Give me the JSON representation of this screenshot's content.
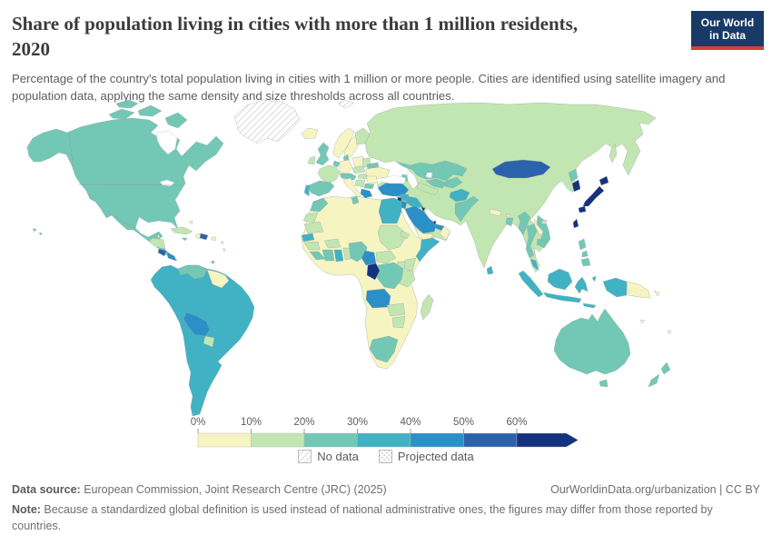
{
  "header": {
    "title": "Share of population living in cities with more than 1 million residents,\n2020",
    "subtitle": "Percentage of the country's total population living in cities with 1 million or more people. Cities are identified using satellite imagery and population data, applying the same density and size thresholds across all countries.",
    "logo": {
      "line1": "Our World",
      "line2": "in Data"
    }
  },
  "theme": {
    "logo_bg": "#183a66",
    "logo_stripe": "#d63f36",
    "title_color": "#3b3b3b",
    "subtitle_color": "#5d5d5d"
  },
  "footer": {
    "data_source_label": "Data source:",
    "data_source_text": " European Commission, Joint Research Centre (JRC) (2025)",
    "rights": "OurWorldinData.org/urbanization | CC BY",
    "note_label": "Note:",
    "note_text": " Because a standardized global definition is used instead of national administrative ones, the figures may differ from those reported by countries."
  },
  "chart_data": {
    "type": "choropleth_map",
    "title": "Share of population living in cities with more than 1 million residents",
    "year": "2020",
    "unit": "% of total population",
    "legend": {
      "tick_labels": [
        "0%",
        "10%",
        "20%",
        "30%",
        "40%",
        "50%",
        "60%"
      ],
      "bins": [
        {
          "range": "0-10%",
          "color": "#f6f5c2"
        },
        {
          "range": "10-20%",
          "color": "#c2e6b2"
        },
        {
          "range": "20-30%",
          "color": "#72c8b4"
        },
        {
          "range": "30-40%",
          "color": "#41b2c3"
        },
        {
          "range": "40-50%",
          "color": "#2b90c7"
        },
        {
          "range": "50-60%",
          "color": "#2a63ac"
        },
        {
          "range": "60%+",
          "color": "#14327d"
        }
      ],
      "no_data_label": "No data",
      "projected_data_label": "Projected data"
    },
    "regions": [
      {
        "id": "north-america",
        "label": "Canada, United States & Mexico",
        "value": "20-30%",
        "bin": 2
      },
      {
        "id": "greenland",
        "label": "Greenland",
        "value": "No data",
        "bin": "no_data"
      },
      {
        "id": "svalbard",
        "label": "Svalbard",
        "value": "No data",
        "bin": "no_data"
      },
      {
        "id": "iceland",
        "label": "Iceland",
        "value": "0-10%",
        "bin": 0
      },
      {
        "id": "hawaii",
        "label": "Hawaii (US)",
        "value": "20-30%",
        "bin": 2
      },
      {
        "id": "belize",
        "label": "Belize",
        "value": "0-10%",
        "bin": 0
      },
      {
        "id": "honduras-nicaragua",
        "label": "Honduras & Nicaragua",
        "value": "10-20%",
        "bin": 1
      },
      {
        "id": "costa-rica",
        "label": "Costa Rica",
        "value": "50-60%",
        "bin": 5
      },
      {
        "id": "panama",
        "label": "Panama",
        "value": "40-50%",
        "bin": 4
      },
      {
        "id": "cuba",
        "label": "Cuba",
        "value": "10-20%",
        "bin": 1
      },
      {
        "id": "jamaica",
        "label": "Jamaica",
        "value": "20-30%",
        "bin": 2
      },
      {
        "id": "haiti",
        "label": "Haiti",
        "value": "0-10%",
        "bin": 0
      },
      {
        "id": "dominican-republic",
        "label": "Dominican Republic",
        "value": "50-60%",
        "bin": 5
      },
      {
        "id": "puerto-rico",
        "label": "Puerto Rico",
        "value": "0-10%",
        "bin": 0
      },
      {
        "id": "bahamas",
        "label": "Bahamas",
        "value": "0-10%",
        "bin": 0
      },
      {
        "id": "lesser-antilles",
        "label": "Lesser Antilles",
        "value": "0-10%",
        "bin": 0
      },
      {
        "id": "trinidad",
        "label": "Trinidad and Tobago",
        "value": "20-30%",
        "bin": 2
      },
      {
        "id": "south-america",
        "label": "Brazil, Argentina, Chile, Peru, Colombia, Ecuador & Uruguay",
        "value": "30-40%",
        "bin": 3
      },
      {
        "id": "venezuela",
        "label": "Venezuela",
        "value": "20-30%",
        "bin": 2
      },
      {
        "id": "guyanas",
        "label": "Guyana, Suriname & French Guiana",
        "value": "0-10%",
        "bin": 0
      },
      {
        "id": "bolivia",
        "label": "Bolivia",
        "value": "40-50%",
        "bin": 4
      },
      {
        "id": "paraguay",
        "label": "Paraguay",
        "value": "10-20%",
        "bin": 1
      },
      {
        "id": "norway",
        "label": "Norway",
        "value": "0-10%",
        "bin": 0
      },
      {
        "id": "sweden",
        "label": "Sweden",
        "value": "0-10%",
        "bin": 0
      },
      {
        "id": "finland",
        "label": "Finland",
        "value": "10-20%",
        "bin": 1
      },
      {
        "id": "uk",
        "label": "United Kingdom",
        "value": "20-30%",
        "bin": 2
      },
      {
        "id": "ireland",
        "label": "Ireland",
        "value": "10-20%",
        "bin": 1
      },
      {
        "id": "denmark",
        "label": "Denmark",
        "value": "20-30%",
        "bin": 2
      },
      {
        "id": "germany",
        "label": "Germany",
        "value": "0-10%",
        "bin": 0
      },
      {
        "id": "benelux",
        "label": "Netherlands & Belgium",
        "value": "20-30%",
        "bin": 2
      },
      {
        "id": "france",
        "label": "France",
        "value": "10-20%",
        "bin": 1
      },
      {
        "id": "spain",
        "label": "Spain",
        "value": "20-30%",
        "bin": 2
      },
      {
        "id": "portugal",
        "label": "Portugal",
        "value": "30-40%",
        "bin": 3
      },
      {
        "id": "switzerland-austria",
        "label": "Switzerland & Austria",
        "value": "20-30%",
        "bin": 2
      },
      {
        "id": "italy",
        "label": "Italy",
        "value": "0-10%",
        "bin": 0
      },
      {
        "id": "poland",
        "label": "Poland",
        "value": "0-10%",
        "bin": 0
      },
      {
        "id": "czech-slovakia",
        "label": "Czechia & Slovakia",
        "value": "10-20%",
        "bin": 1
      },
      {
        "id": "hungary",
        "label": "Hungary",
        "value": "10-20%",
        "bin": 1
      },
      {
        "id": "baltics",
        "label": "Baltic states",
        "value": "10-20%",
        "bin": 1
      },
      {
        "id": "belarus",
        "label": "Belarus",
        "value": "20-30%",
        "bin": 2
      },
      {
        "id": "ukraine",
        "label": "Ukraine",
        "value": "0-10%",
        "bin": 0
      },
      {
        "id": "romania",
        "label": "Romania",
        "value": "0-10%",
        "bin": 0
      },
      {
        "id": "balkans",
        "label": "Western Balkans",
        "value": "10-20%",
        "bin": 1
      },
      {
        "id": "bulgaria",
        "label": "Bulgaria",
        "value": "20-30%",
        "bin": 2
      },
      {
        "id": "greece",
        "label": "Greece",
        "value": "40-50%",
        "bin": 4
      },
      {
        "id": "asia-mainland",
        "label": "Russia, China, India & Iran",
        "value": "10-20%",
        "bin": 1
      },
      {
        "id": "sakhalin",
        "label": "Sakhalin (Russia)",
        "value": "10-20%",
        "bin": 1
      },
      {
        "id": "kazakhstan",
        "label": "Kazakhstan",
        "value": "20-30%",
        "bin": 2
      },
      {
        "id": "uzbekistan",
        "label": "Uzbekistan",
        "value": "20-30%",
        "bin": 2
      },
      {
        "id": "turkmenistan",
        "label": "Turkmenistan",
        "value": "10-20%",
        "bin": 1
      },
      {
        "id": "kyrgyz-tajik",
        "label": "Kyrgyzstan & Tajikistan",
        "value": "20-30%",
        "bin": 2
      },
      {
        "id": "caucasus",
        "label": "Georgia & Azerbaijan",
        "value": "20-30%",
        "bin": 2
      },
      {
        "id": "turkey",
        "label": "Turkey",
        "value": "40-50%",
        "bin": 4
      },
      {
        "id": "syria",
        "label": "Syria",
        "value": "30-40%",
        "bin": 3
      },
      {
        "id": "iraq",
        "label": "Iraq",
        "value": "30-40%",
        "bin": 3
      },
      {
        "id": "israel-lebanon",
        "label": "Israel & Lebanon",
        "value": "60%+",
        "bin": 6
      },
      {
        "id": "jordan",
        "label": "Jordan",
        "value": "40-50%",
        "bin": 4
      },
      {
        "id": "saudi-arabia",
        "label": "Saudi Arabia",
        "value": "40-50%",
        "bin": 4
      },
      {
        "id": "kuwait",
        "label": "Kuwait",
        "value": "60%+",
        "bin": 6
      },
      {
        "id": "qatar",
        "label": "Qatar",
        "value": "60%+",
        "bin": 6
      },
      {
        "id": "uae",
        "label": "United Arab Emirates",
        "value": "40-50%",
        "bin": 4
      },
      {
        "id": "oman",
        "label": "Oman",
        "value": "0-10%",
        "bin": 0
      },
      {
        "id": "yemen",
        "label": "Yemen",
        "value": "0-10%",
        "bin": 0
      },
      {
        "id": "afghanistan",
        "label": "Afghanistan",
        "value": "30-40%",
        "bin": 3
      },
      {
        "id": "pakistan",
        "label": "Pakistan",
        "value": "20-30%",
        "bin": 2
      },
      {
        "id": "nepal",
        "label": "Nepal",
        "value": "0-10%",
        "bin": 0
      },
      {
        "id": "bhutan",
        "label": "Bhutan",
        "value": "0-10%",
        "bin": 0
      },
      {
        "id": "bangladesh",
        "label": "Bangladesh",
        "value": "20-30%",
        "bin": 2
      },
      {
        "id": "sri-lanka",
        "label": "Sri Lanka",
        "value": "30-40%",
        "bin": 3
      },
      {
        "id": "mongolia",
        "label": "Mongolia",
        "value": "50-60%",
        "bin": 5
      },
      {
        "id": "myanmar",
        "label": "Myanmar",
        "value": "20-30%",
        "bin": 2
      },
      {
        "id": "thailand",
        "label": "Thailand",
        "value": "20-30%",
        "bin": 2
      },
      {
        "id": "laos",
        "label": "Laos",
        "value": "0-10%",
        "bin": 0
      },
      {
        "id": "cambodia",
        "label": "Cambodia",
        "value": "20-30%",
        "bin": 2
      },
      {
        "id": "vietnam",
        "label": "Vietnam",
        "value": "20-30%",
        "bin": 2
      },
      {
        "id": "malaysia",
        "label": "Malaysia",
        "value": "30-40%",
        "bin": 3
      },
      {
        "id": "indonesia",
        "label": "Indonesia",
        "value": "30-40%",
        "bin": 3
      },
      {
        "id": "philippines",
        "label": "Philippines",
        "value": "20-30%",
        "bin": 2
      },
      {
        "id": "hainan",
        "label": "Hainan (China)",
        "value": "10-20%",
        "bin": 1
      },
      {
        "id": "north-korea",
        "label": "North Korea",
        "value": "20-30%",
        "bin": 2
      },
      {
        "id": "south-korea",
        "label": "South Korea",
        "value": "60%+",
        "bin": 6
      },
      {
        "id": "japan",
        "label": "Japan",
        "value": "60%+",
        "bin": 6
      },
      {
        "id": "taiwan",
        "label": "Taiwan",
        "value": "60%+",
        "bin": 6
      },
      {
        "id": "papua-new-guinea",
        "label": "Papua New Guinea",
        "value": "0-10%",
        "bin": 0
      },
      {
        "id": "australia",
        "label": "Australia",
        "value": "20-30%",
        "bin": 2
      },
      {
        "id": "new-zealand",
        "label": "New Zealand",
        "value": "20-30%",
        "bin": 2
      },
      {
        "id": "fiji",
        "label": "Fiji",
        "value": "0-10%",
        "bin": 0
      },
      {
        "id": "new-caledonia",
        "label": "New Caledonia",
        "value": "0-10%",
        "bin": 0
      },
      {
        "id": "africa-sahara",
        "label": "Algeria, Libya, Mali, Niger, Chad, Ethiopia, Namibia, Botswana, Mozambique & Gabon",
        "value": "0-10%",
        "bin": 0
      },
      {
        "id": "morocco",
        "label": "Morocco",
        "value": "20-30%",
        "bin": 2
      },
      {
        "id": "western-sahara",
        "label": "Western Sahara",
        "value": "10-20%",
        "bin": 1
      },
      {
        "id": "tunisia",
        "label": "Tunisia",
        "value": "20-30%",
        "bin": 2
      },
      {
        "id": "egypt",
        "label": "Egypt",
        "value": "30-40%",
        "bin": 3
      },
      {
        "id": "mauritania",
        "label": "Mauritania",
        "value": "10-20%",
        "bin": 1
      },
      {
        "id": "senegal",
        "label": "Senegal",
        "value": "30-40%",
        "bin": 3
      },
      {
        "id": "guinea",
        "label": "Guinea",
        "value": "10-20%",
        "bin": 1
      },
      {
        "id": "sierra-leone-liberia",
        "label": "Sierra Leone & Liberia",
        "value": "20-30%",
        "bin": 2
      },
      {
        "id": "ivory-coast",
        "label": "Cote d'Ivoire",
        "value": "20-30%",
        "bin": 2
      },
      {
        "id": "ghana",
        "label": "Ghana",
        "value": "30-40%",
        "bin": 3
      },
      {
        "id": "togo-benin",
        "label": "Togo & Benin",
        "value": "10-20%",
        "bin": 1
      },
      {
        "id": "burkina-faso",
        "label": "Burkina Faso",
        "value": "10-20%",
        "bin": 1
      },
      {
        "id": "nigeria",
        "label": "Nigeria",
        "value": "20-30%",
        "bin": 2
      },
      {
        "id": "cameroon",
        "label": "Cameroon",
        "value": "40-50%",
        "bin": 4
      },
      {
        "id": "central-african-republic",
        "label": "Central African Republic",
        "value": "10-20%",
        "bin": 1
      },
      {
        "id": "sudan",
        "label": "Sudan",
        "value": "10-20%",
        "bin": 1
      },
      {
        "id": "eritrea",
        "label": "Eritrea",
        "value": "10-20%",
        "bin": 1
      },
      {
        "id": "somalia",
        "label": "Somalia",
        "value": "30-40%",
        "bin": 3
      },
      {
        "id": "kenya",
        "label": "Kenya",
        "value": "10-20%",
        "bin": 1
      },
      {
        "id": "uganda",
        "label": "Uganda",
        "value": "10-20%",
        "bin": 1
      },
      {
        "id": "tanzania",
        "label": "Tanzania",
        "value": "10-20%",
        "bin": 1
      },
      {
        "id": "drc",
        "label": "Democratic Republic of the Congo",
        "value": "20-30%",
        "bin": 2
      },
      {
        "id": "congo",
        "label": "Congo",
        "value": "60%+",
        "bin": 6
      },
      {
        "id": "angola",
        "label": "Angola",
        "value": "40-50%",
        "bin": 4
      },
      {
        "id": "zambia",
        "label": "Zambia",
        "value": "10-20%",
        "bin": 1
      },
      {
        "id": "zimbabwe",
        "label": "Zimbabwe",
        "value": "10-20%",
        "bin": 1
      },
      {
        "id": "south-africa",
        "label": "South Africa",
        "value": "20-30%",
        "bin": 2
      },
      {
        "id": "madagascar",
        "label": "Madagascar",
        "value": "10-20%",
        "bin": 1
      }
    ]
  }
}
